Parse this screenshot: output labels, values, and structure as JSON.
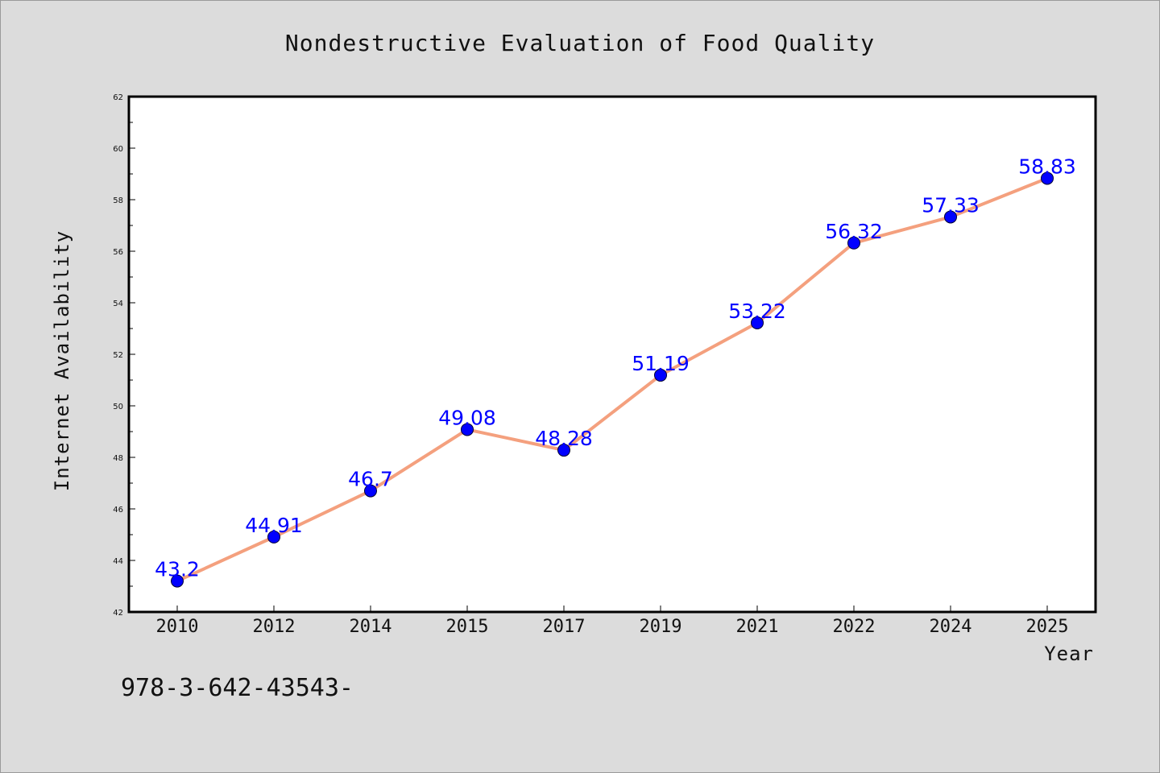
{
  "chart_data": {
    "type": "line",
    "title": "Nondestructive Evaluation of Food Quality",
    "xlabel": "Year",
    "ylabel": "Internet Availability",
    "categories": [
      "2010",
      "2012",
      "2014",
      "2015",
      "2017",
      "2019",
      "2021",
      "2022",
      "2024",
      "2025"
    ],
    "series": [
      {
        "values": [
          43.2,
          44.91,
          46.7,
          49.08,
          48.28,
          51.19,
          53.22,
          56.32,
          57.33,
          58.83
        ],
        "data_labels": [
          "43.2",
          "44.91",
          "46.7",
          "49.08",
          "48.28",
          "51.19",
          "53.22",
          "56.32",
          "57.33",
          "58.83"
        ],
        "line_color": "#f4a07e",
        "marker_color": "#0000ff"
      }
    ],
    "ylim": [
      42,
      62
    ],
    "yticks": [
      "42",
      "44",
      "46",
      "48",
      "50",
      "52",
      "54",
      "56",
      "58",
      "60",
      "62"
    ],
    "grid": false,
    "legend": "none"
  },
  "footer_note": "978-3-642-43543-",
  "colors": {
    "background": "#dcdcdc",
    "plot_background": "#ffffff",
    "line": "#f4a07e",
    "marker": "#0000ff",
    "data_label": "#0000ff"
  }
}
